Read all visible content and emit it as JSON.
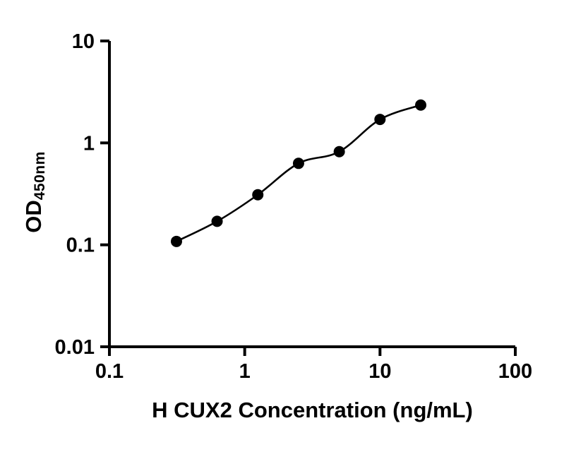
{
  "chart_data": {
    "type": "scatter",
    "title": "",
    "xlabel": "H CUX2 Concentration (ng/mL)",
    "ylabel_main": "OD",
    "ylabel_sub": "450nm",
    "x": [
      0.313,
      0.625,
      1.25,
      2.5,
      5,
      10,
      20
    ],
    "y": [
      0.108,
      0.17,
      0.31,
      0.63,
      0.82,
      1.7,
      2.35
    ],
    "x_scale": "log",
    "y_scale": "log",
    "xlim": [
      0.1,
      100
    ],
    "ylim": [
      0.01,
      10
    ],
    "x_ticks": [
      0.1,
      1,
      10,
      100
    ],
    "x_tick_labels": [
      "0.1",
      "1",
      "10",
      "100"
    ],
    "y_ticks": [
      0.01,
      0.1,
      1,
      10
    ],
    "y_tick_labels": [
      "0.01",
      "0.1",
      "1",
      "10"
    ],
    "grid": false,
    "legend_position": "none",
    "marker_color": "#000000",
    "line_color": "#000000",
    "axis_color": "#000000",
    "background": "#ffffff",
    "marker_radius": 8,
    "line_width": 2.6,
    "axis_width": 4,
    "tick_length": 13
  }
}
